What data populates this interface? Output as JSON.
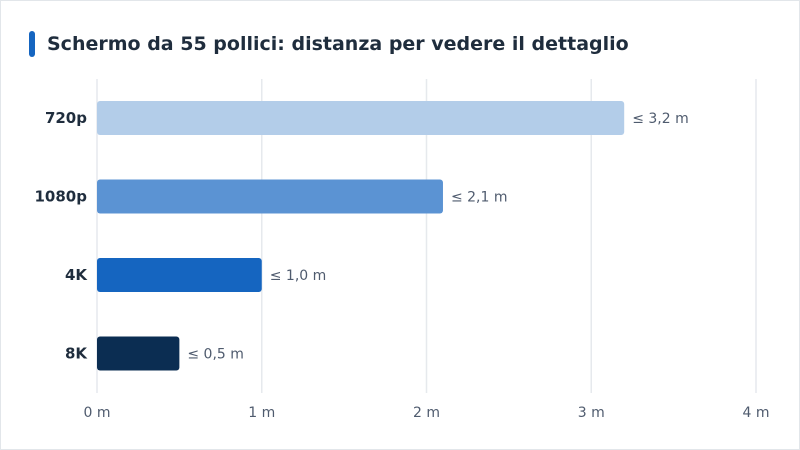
{
  "chart_data": {
    "type": "bar",
    "orientation": "horizontal",
    "title": "Schermo da 55 pollici: distanza per vedere il dettaglio",
    "categories": [
      "720p",
      "1080p",
      "4K",
      "8K"
    ],
    "values": [
      3.2,
      2.1,
      1.0,
      0.5
    ],
    "value_labels": [
      "≤ 3,2 m",
      "≤ 2,1 m",
      "≤ 1,0 m",
      "≤ 0,5 m"
    ],
    "colors": [
      "#b3cde9",
      "#5b93d3",
      "#1565c0",
      "#0b2d52"
    ],
    "xlim": [
      0,
      4
    ],
    "x_ticks": [
      0,
      1,
      2,
      3,
      4
    ],
    "x_tick_labels": [
      "0 m",
      "1 m",
      "2 m",
      "3 m",
      "4 m"
    ],
    "grid": true,
    "accent_color": "#1565c0"
  }
}
